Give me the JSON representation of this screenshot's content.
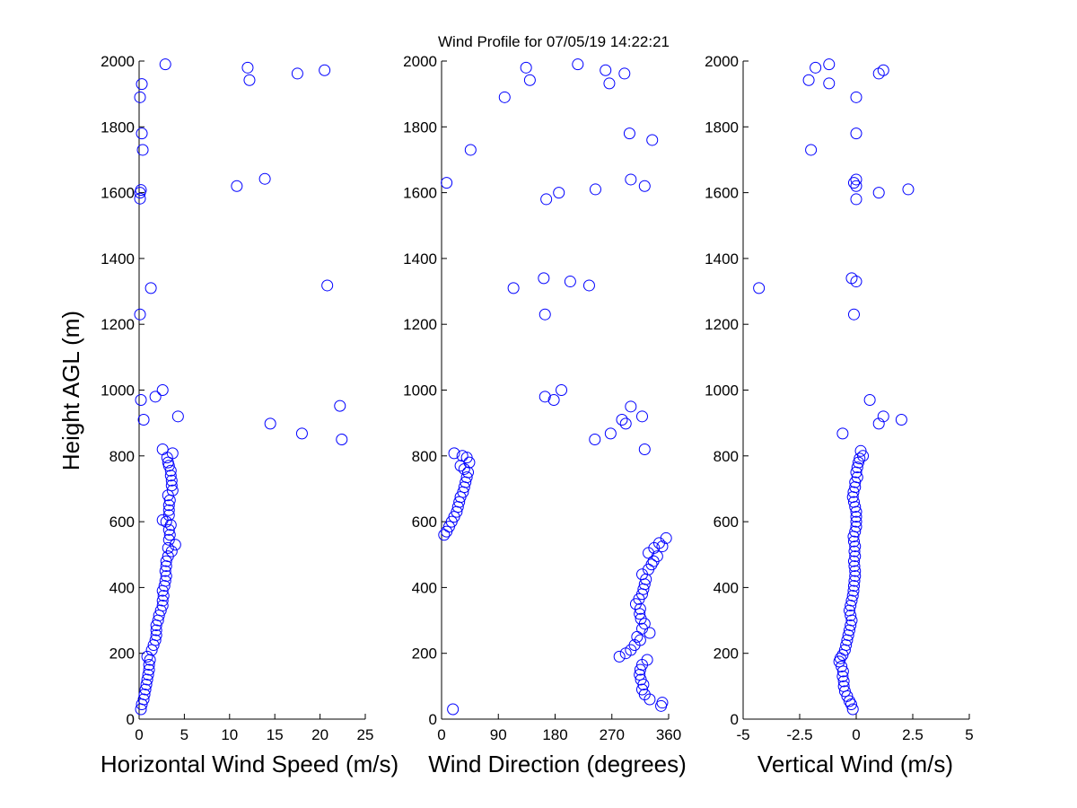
{
  "figure": {
    "title": "Wind Profile for  07/05/19 14:22:21",
    "marker_color": "#0000ff",
    "marker": "circle-open"
  },
  "chart_data": [
    {
      "type": "scatter",
      "title": "",
      "xlabel": "Horizontal Wind Speed (m/s)",
      "ylabel": "Height AGL (m)",
      "xlim": [
        0,
        25
      ],
      "ylim": [
        0,
        2000
      ],
      "xticks": [
        "0",
        "5",
        "10",
        "15",
        "20",
        "25"
      ],
      "xtick_values": [
        0,
        5,
        10,
        15,
        20,
        25
      ],
      "yticks": [
        "0",
        "200",
        "400",
        "600",
        "800",
        "1000",
        "1200",
        "1400",
        "1600",
        "1800",
        "2000"
      ],
      "ytick_values": [
        0,
        200,
        400,
        600,
        800,
        1000,
        1200,
        1400,
        1600,
        1800,
        2000
      ],
      "grid": false,
      "points": [
        [
          0.2,
          30
        ],
        [
          0.3,
          45
        ],
        [
          0.5,
          60
        ],
        [
          0.6,
          75
        ],
        [
          0.7,
          90
        ],
        [
          0.8,
          105
        ],
        [
          0.9,
          120
        ],
        [
          1.0,
          135
        ],
        [
          1.1,
          150
        ],
        [
          1.1,
          165
        ],
        [
          1.2,
          180
        ],
        [
          0.9,
          190
        ],
        [
          1.4,
          210
        ],
        [
          1.6,
          225
        ],
        [
          1.8,
          240
        ],
        [
          1.9,
          255
        ],
        [
          1.9,
          270
        ],
        [
          1.9,
          285
        ],
        [
          2.1,
          300
        ],
        [
          2.2,
          315
        ],
        [
          2.4,
          330
        ],
        [
          2.6,
          345
        ],
        [
          2.6,
          360
        ],
        [
          2.7,
          375
        ],
        [
          2.6,
          390
        ],
        [
          2.8,
          405
        ],
        [
          2.9,
          420
        ],
        [
          3.0,
          435
        ],
        [
          2.9,
          450
        ],
        [
          3.0,
          465
        ],
        [
          3.0,
          480
        ],
        [
          3.2,
          495
        ],
        [
          3.6,
          510
        ],
        [
          3.2,
          520
        ],
        [
          4.0,
          530
        ],
        [
          3.3,
          545
        ],
        [
          3.4,
          560
        ],
        [
          3.3,
          575
        ],
        [
          3.5,
          590
        ],
        [
          3.0,
          600
        ],
        [
          2.6,
          605
        ],
        [
          3.3,
          620
        ],
        [
          3.3,
          635
        ],
        [
          3.3,
          650
        ],
        [
          3.4,
          665
        ],
        [
          3.2,
          680
        ],
        [
          3.7,
          695
        ],
        [
          3.6,
          710
        ],
        [
          3.6,
          725
        ],
        [
          3.5,
          740
        ],
        [
          3.5,
          755
        ],
        [
          3.3,
          770
        ],
        [
          3.2,
          780
        ],
        [
          3.1,
          795
        ],
        [
          3.7,
          808
        ],
        [
          2.6,
          820
        ],
        [
          4.3,
          920
        ],
        [
          0.5,
          910
        ],
        [
          0.2,
          970
        ],
        [
          1.8,
          980
        ],
        [
          2.6,
          1000
        ],
        [
          14.5,
          898
        ],
        [
          18.0,
          868
        ],
        [
          22.4,
          850
        ],
        [
          22.2,
          952
        ],
        [
          0.1,
          1230
        ],
        [
          1.3,
          1310
        ],
        [
          20.8,
          1318
        ],
        [
          0.1,
          1582
        ],
        [
          0.1,
          1600
        ],
        [
          0.2,
          1608
        ],
        [
          10.8,
          1620
        ],
        [
          13.9,
          1642
        ],
        [
          0.4,
          1730
        ],
        [
          0.3,
          1780
        ],
        [
          0.1,
          1890
        ],
        [
          0.3,
          1930
        ],
        [
          2.9,
          1990
        ],
        [
          12.0,
          1980
        ],
        [
          12.2,
          1942
        ],
        [
          17.5,
          1962
        ],
        [
          20.5,
          1972
        ]
      ]
    },
    {
      "type": "scatter",
      "title": "",
      "xlabel": "Wind Direction (degrees)",
      "ylabel": "",
      "xlim": [
        0,
        360
      ],
      "ylim": [
        0,
        2000
      ],
      "xticks": [
        "0",
        "90",
        "180",
        "270",
        "360"
      ],
      "xtick_values": [
        0,
        90,
        180,
        270,
        360
      ],
      "yticks": [
        "0",
        "200",
        "400",
        "600",
        "800",
        "1000",
        "1200",
        "1400",
        "1600",
        "1800",
        "2000"
      ],
      "ytick_values": [
        0,
        200,
        400,
        600,
        800,
        1000,
        1200,
        1400,
        1600,
        1800,
        2000
      ],
      "grid": false,
      "points": [
        [
          18,
          30
        ],
        [
          348,
          40
        ],
        [
          350,
          50
        ],
        [
          330,
          60
        ],
        [
          322,
          75
        ],
        [
          318,
          90
        ],
        [
          320,
          105
        ],
        [
          316,
          120
        ],
        [
          314,
          135
        ],
        [
          315,
          150
        ],
        [
          318,
          165
        ],
        [
          326,
          180
        ],
        [
          282,
          190
        ],
        [
          292,
          200
        ],
        [
          300,
          210
        ],
        [
          306,
          225
        ],
        [
          315,
          240
        ],
        [
          310,
          250
        ],
        [
          330,
          262
        ],
        [
          318,
          275
        ],
        [
          322,
          290
        ],
        [
          316,
          305
        ],
        [
          314,
          320
        ],
        [
          315,
          335
        ],
        [
          308,
          350
        ],
        [
          313,
          365
        ],
        [
          318,
          380
        ],
        [
          320,
          395
        ],
        [
          322,
          410
        ],
        [
          324,
          425
        ],
        [
          318,
          440
        ],
        [
          328,
          455
        ],
        [
          333,
          470
        ],
        [
          336,
          480
        ],
        [
          342,
          495
        ],
        [
          328,
          505
        ],
        [
          337,
          520
        ],
        [
          350,
          525
        ],
        [
          345,
          535
        ],
        [
          356,
          550
        ],
        [
          4,
          560
        ],
        [
          8,
          570
        ],
        [
          12,
          585
        ],
        [
          16,
          600
        ],
        [
          20,
          615
        ],
        [
          24,
          630
        ],
        [
          26,
          645
        ],
        [
          28,
          660
        ],
        [
          30,
          675
        ],
        [
          34,
          690
        ],
        [
          36,
          705
        ],
        [
          38,
          720
        ],
        [
          40,
          735
        ],
        [
          42,
          750
        ],
        [
          36,
          760
        ],
        [
          30,
          770
        ],
        [
          44,
          780
        ],
        [
          40,
          795
        ],
        [
          33,
          800
        ],
        [
          20,
          808
        ],
        [
          243,
          850
        ],
        [
          268,
          868
        ],
        [
          292,
          898
        ],
        [
          286,
          910
        ],
        [
          318,
          920
        ],
        [
          300,
          950
        ],
        [
          322,
          820
        ],
        [
          164,
          980
        ],
        [
          178,
          970
        ],
        [
          190,
          1000
        ],
        [
          164,
          1230
        ],
        [
          114,
          1310
        ],
        [
          162,
          1340
        ],
        [
          204,
          1330
        ],
        [
          234,
          1318
        ],
        [
          8,
          1630
        ],
        [
          166,
          1580
        ],
        [
          186,
          1600
        ],
        [
          244,
          1610
        ],
        [
          300,
          1640
        ],
        [
          322,
          1620
        ],
        [
          46,
          1730
        ],
        [
          298,
          1780
        ],
        [
          334,
          1760
        ],
        [
          100,
          1890
        ],
        [
          134,
          1980
        ],
        [
          140,
          1942
        ],
        [
          216,
          1990
        ],
        [
          260,
          1972
        ],
        [
          266,
          1932
        ],
        [
          290,
          1962
        ]
      ]
    },
    {
      "type": "scatter",
      "title": "",
      "xlabel": "Vertical Wind (m/s)",
      "ylabel": "",
      "xlim": [
        -5,
        5
      ],
      "ylim": [
        0,
        2000
      ],
      "xticks": [
        "-5",
        "-2.5",
        "0",
        "2.5",
        "5"
      ],
      "xtick_values": [
        -5,
        -2.5,
        0,
        2.5,
        5
      ],
      "yticks": [
        "0",
        "200",
        "400",
        "600",
        "800",
        "1000",
        "1200",
        "1400",
        "1600",
        "1800",
        "2000"
      ],
      "ytick_values": [
        0,
        200,
        400,
        600,
        800,
        1000,
        1200,
        1400,
        1600,
        1800,
        2000
      ],
      "grid": false,
      "points": [
        [
          -0.15,
          30
        ],
        [
          -0.22,
          45
        ],
        [
          -0.3,
          55
        ],
        [
          -0.4,
          70
        ],
        [
          -0.5,
          85
        ],
        [
          -0.55,
          100
        ],
        [
          -0.55,
          115
        ],
        [
          -0.6,
          130
        ],
        [
          -0.58,
          145
        ],
        [
          -0.65,
          160
        ],
        [
          -0.75,
          175
        ],
        [
          -0.7,
          185
        ],
        [
          -0.6,
          195
        ],
        [
          -0.5,
          210
        ],
        [
          -0.45,
          225
        ],
        [
          -0.4,
          240
        ],
        [
          -0.35,
          255
        ],
        [
          -0.3,
          270
        ],
        [
          -0.25,
          285
        ],
        [
          -0.2,
          300
        ],
        [
          -0.25,
          315
        ],
        [
          -0.3,
          330
        ],
        [
          -0.25,
          345
        ],
        [
          -0.2,
          360
        ],
        [
          -0.15,
          375
        ],
        [
          -0.12,
          390
        ],
        [
          -0.1,
          405
        ],
        [
          -0.08,
          420
        ],
        [
          -0.05,
          435
        ],
        [
          -0.05,
          450
        ],
        [
          -0.08,
          465
        ],
        [
          -0.1,
          480
        ],
        [
          -0.05,
          495
        ],
        [
          -0.08,
          510
        ],
        [
          -0.05,
          525
        ],
        [
          -0.1,
          540
        ],
        [
          -0.12,
          555
        ],
        [
          -0.05,
          570
        ],
        [
          0.0,
          585
        ],
        [
          0.0,
          600
        ],
        [
          0.0,
          615
        ],
        [
          0.0,
          630
        ],
        [
          -0.05,
          645
        ],
        [
          -0.1,
          660
        ],
        [
          -0.15,
          675
        ],
        [
          -0.12,
          690
        ],
        [
          -0.05,
          705
        ],
        [
          -0.05,
          720
        ],
        [
          0.05,
          735
        ],
        [
          0.0,
          750
        ],
        [
          0.05,
          765
        ],
        [
          0.1,
          780
        ],
        [
          0.15,
          792
        ],
        [
          0.3,
          800
        ],
        [
          0.2,
          815
        ],
        [
          -0.6,
          868
        ],
        [
          1.0,
          898
        ],
        [
          1.2,
          920
        ],
        [
          2.0,
          910
        ],
        [
          0.6,
          970
        ],
        [
          -0.1,
          1230
        ],
        [
          -4.3,
          1310
        ],
        [
          -0.2,
          1340
        ],
        [
          0.0,
          1330
        ],
        [
          0.0,
          1580
        ],
        [
          1.0,
          1600
        ],
        [
          0.0,
          1620
        ],
        [
          -0.1,
          1630
        ],
        [
          0.0,
          1640
        ],
        [
          2.3,
          1610
        ],
        [
          -2.0,
          1730
        ],
        [
          0.0,
          1780
        ],
        [
          0.0,
          1890
        ],
        [
          -2.1,
          1942
        ],
        [
          -1.8,
          1980
        ],
        [
          -1.2,
          1990
        ],
        [
          -1.2,
          1932
        ],
        [
          1.0,
          1962
        ],
        [
          1.2,
          1972
        ]
      ]
    }
  ]
}
